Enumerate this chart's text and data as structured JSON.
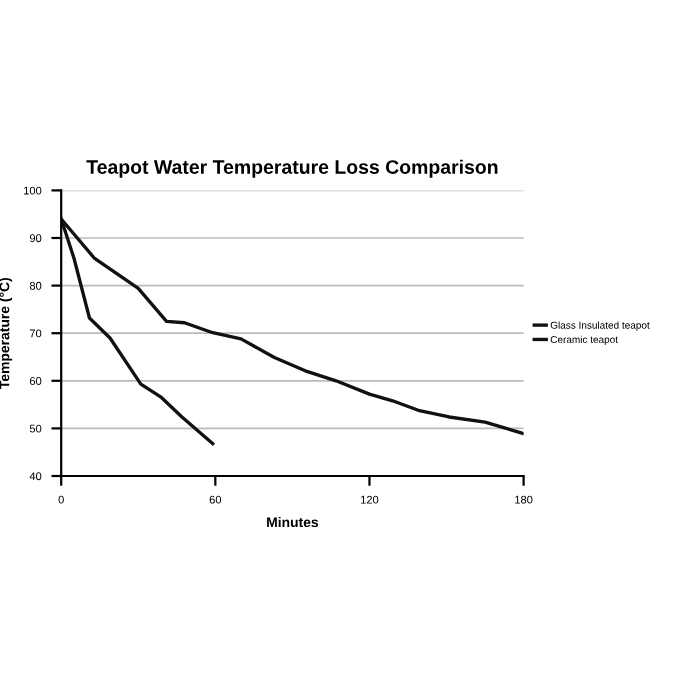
{
  "chart_data": {
    "type": "line",
    "title": "Teapot Water Temperature Loss Comparison",
    "xlabel": "Minutes",
    "ylabel": "Temperature (°C)",
    "xlim": [
      0,
      180
    ],
    "xticks": [
      0,
      60,
      120,
      180
    ],
    "ylim": [
      40,
      100
    ],
    "yticks": [
      40,
      50,
      60,
      70,
      80,
      90,
      100
    ],
    "grid": "y",
    "legend": "right",
    "marker": "none",
    "line_style": "solid",
    "series": [
      {
        "name": "Glass Insulated teapot",
        "color": "#111111",
        "x": [
          0,
          13,
          30,
          41,
          48,
          59,
          70,
          83,
          95,
          107,
          120,
          129,
          139,
          151,
          165,
          180
        ],
        "values": [
          94,
          85.7,
          79.4,
          72.5,
          72.2,
          70.1,
          68.8,
          64.9,
          62.1,
          60,
          57.2,
          55.8,
          53.8,
          52.4,
          51.3,
          48.9
        ]
      },
      {
        "name": "Ceramic teapot",
        "color": "#111111",
        "x": [
          0,
          5,
          11,
          19,
          31,
          39,
          47,
          59
        ],
        "values": [
          94,
          85.7,
          73.2,
          69,
          59.3,
          56.5,
          52.4,
          46.8
        ]
      }
    ]
  }
}
